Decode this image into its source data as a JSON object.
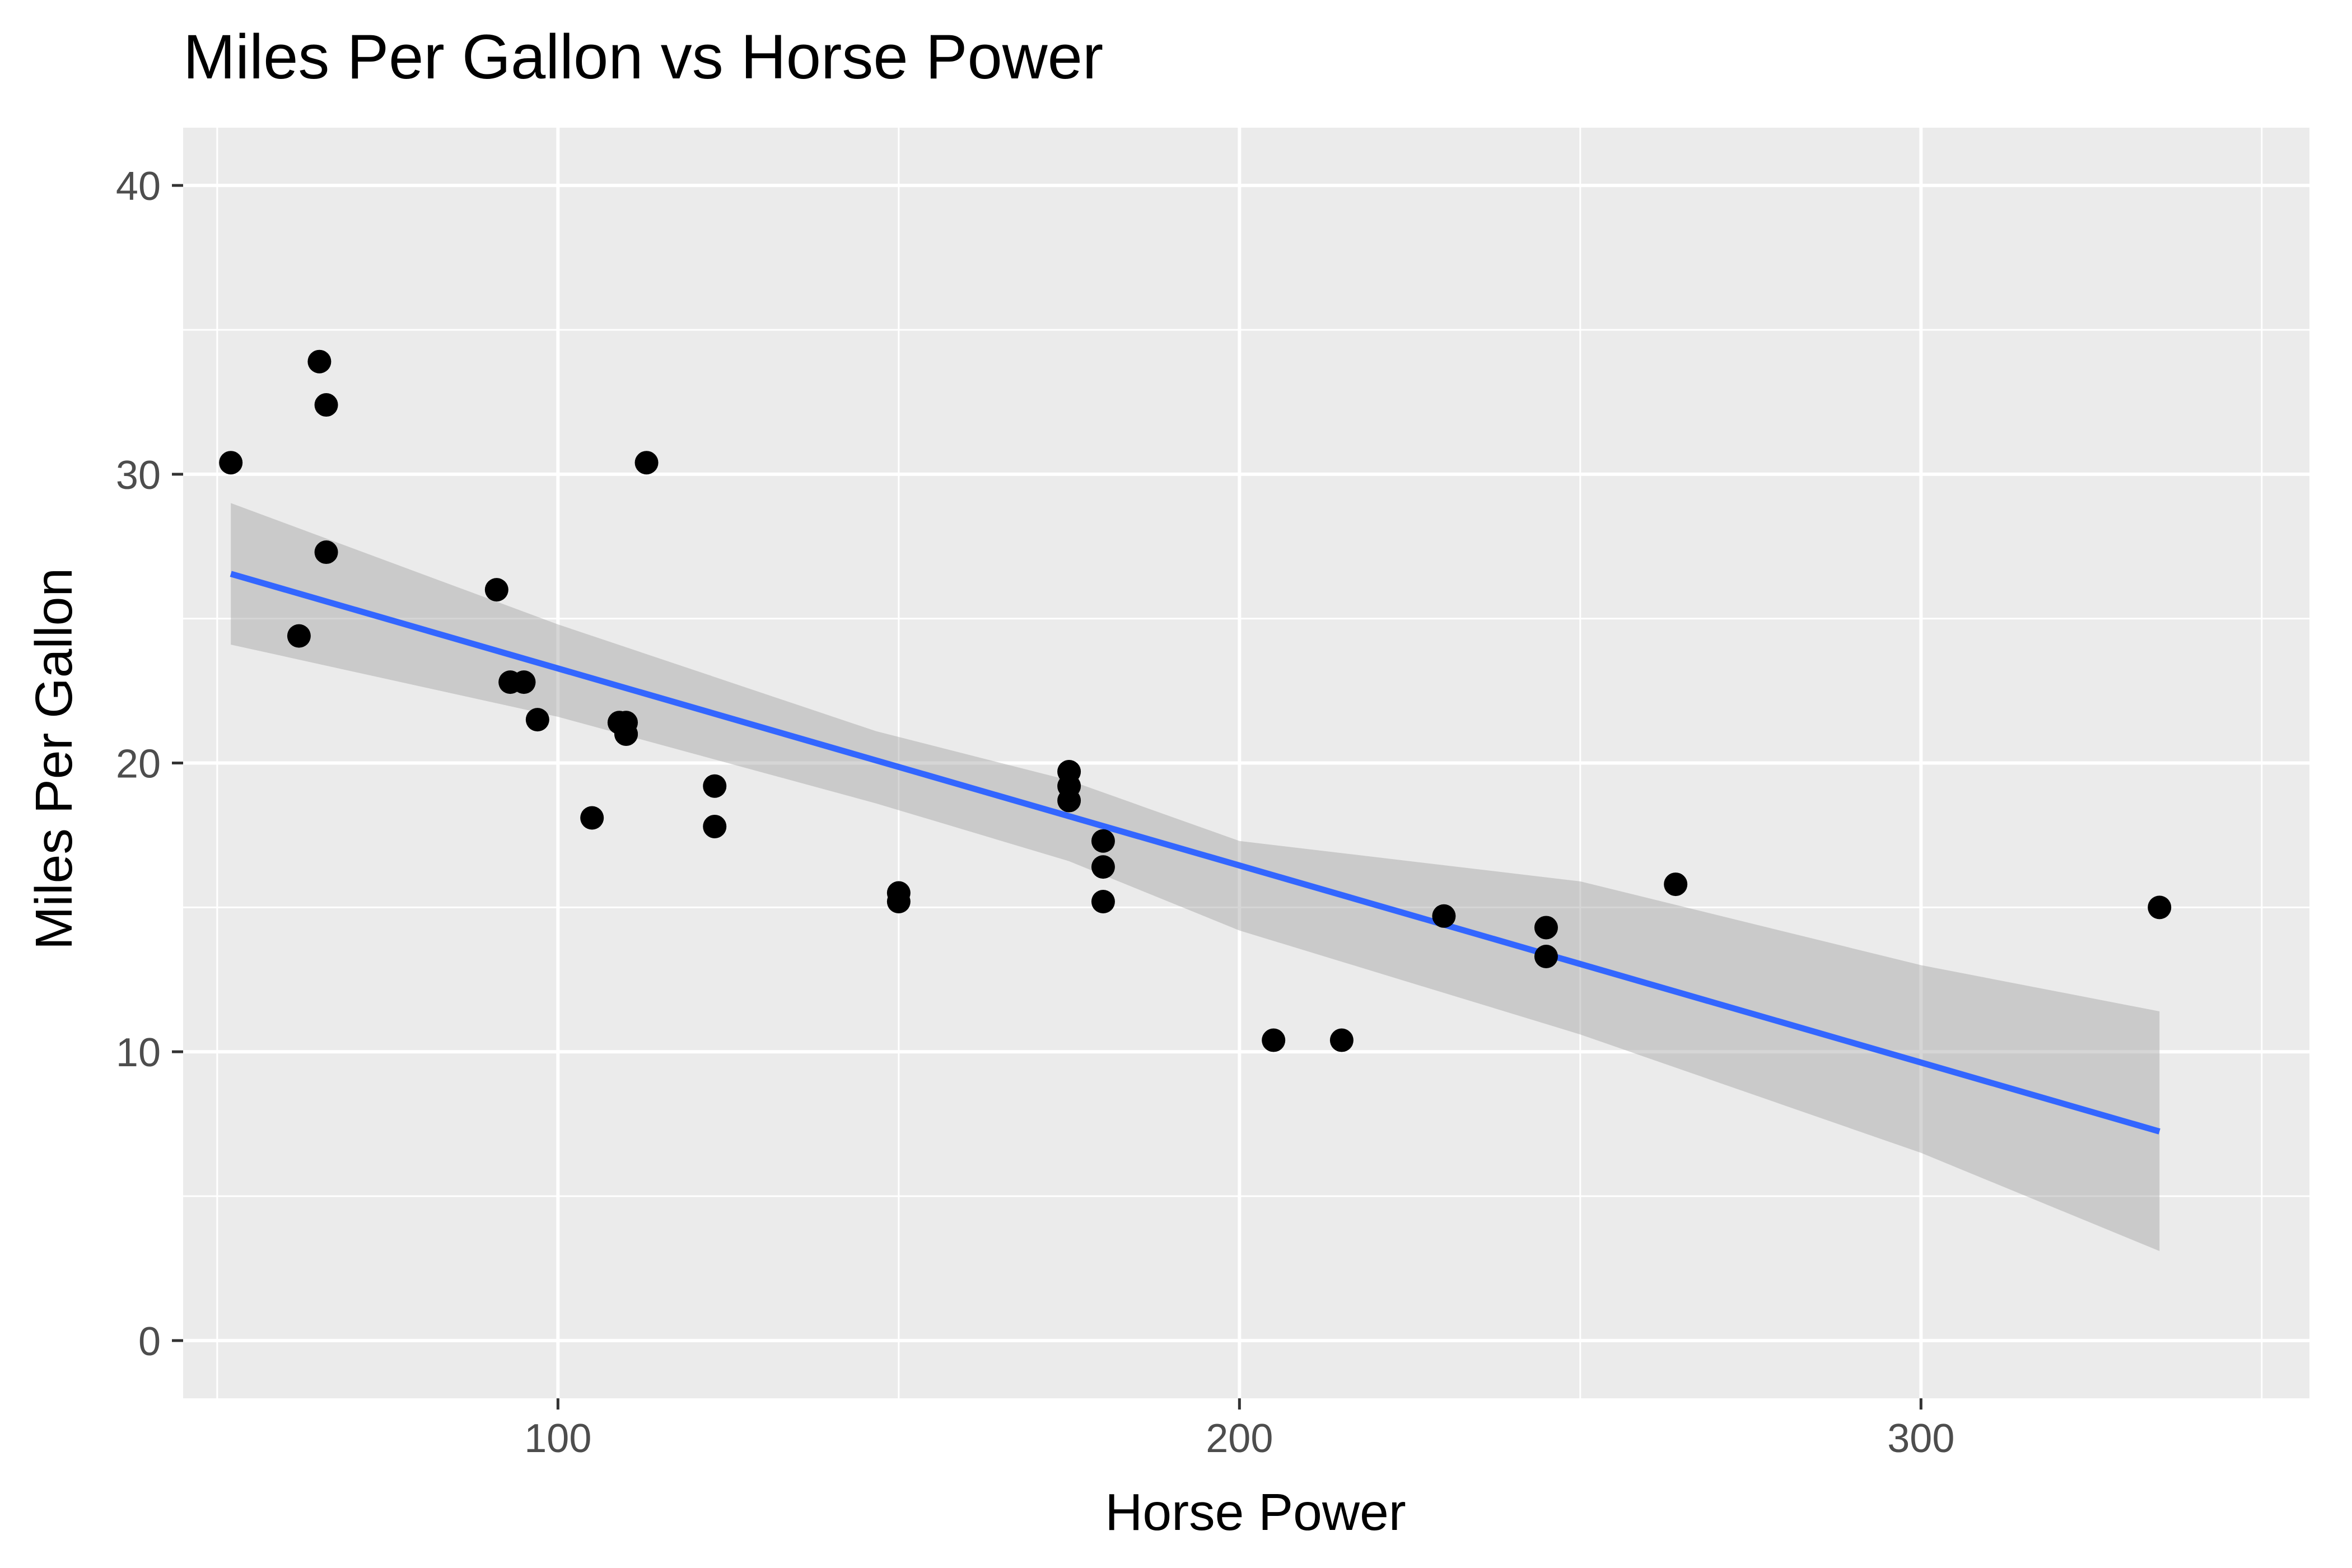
{
  "chart_data": {
    "type": "scatter",
    "title": "Miles Per Gallon vs Horse Power",
    "xlabel": "Horse Power",
    "ylabel": "Miles Per Gallon",
    "xlim": [
      45,
      357
    ],
    "ylim": [
      -2,
      42
    ],
    "x_ticks": [
      100,
      200,
      300
    ],
    "x_tick_labels": [
      "100",
      "200",
      "300"
    ],
    "y_ticks": [
      0,
      10,
      20,
      30,
      40
    ],
    "y_tick_labels": [
      "0",
      "10",
      "20",
      "30",
      "40"
    ],
    "x_minor_gridlines": [
      50,
      150,
      250,
      350
    ],
    "y_minor_gridlines": [
      5,
      15,
      25,
      35
    ],
    "grid": true,
    "colors": {
      "panel": "#ebebeb",
      "grid": "#ffffff",
      "points": "#000000",
      "fit_line": "#3366ff",
      "ribbon": "#999999",
      "axis_text": "#4d4d4d",
      "tick": "#333333"
    },
    "points": [
      {
        "x": 110,
        "y": 21.0
      },
      {
        "x": 110,
        "y": 21.0
      },
      {
        "x": 93,
        "y": 22.8
      },
      {
        "x": 110,
        "y": 21.4
      },
      {
        "x": 175,
        "y": 18.7
      },
      {
        "x": 105,
        "y": 18.1
      },
      {
        "x": 245,
        "y": 14.3
      },
      {
        "x": 62,
        "y": 24.4
      },
      {
        "x": 95,
        "y": 22.8
      },
      {
        "x": 123,
        "y": 19.2
      },
      {
        "x": 123,
        "y": 17.8
      },
      {
        "x": 180,
        "y": 16.4
      },
      {
        "x": 180,
        "y": 17.3
      },
      {
        "x": 180,
        "y": 15.2
      },
      {
        "x": 205,
        "y": 10.4
      },
      {
        "x": 215,
        "y": 10.4
      },
      {
        "x": 230,
        "y": 14.7
      },
      {
        "x": 66,
        "y": 32.4
      },
      {
        "x": 52,
        "y": 30.4
      },
      {
        "x": 65,
        "y": 33.9
      },
      {
        "x": 97,
        "y": 21.5
      },
      {
        "x": 150,
        "y": 15.5
      },
      {
        "x": 150,
        "y": 15.2
      },
      {
        "x": 245,
        "y": 13.3
      },
      {
        "x": 175,
        "y": 19.2
      },
      {
        "x": 66,
        "y": 27.3
      },
      {
        "x": 91,
        "y": 26.0
      },
      {
        "x": 113,
        "y": 30.4
      },
      {
        "x": 264,
        "y": 15.8
      },
      {
        "x": 175,
        "y": 19.7
      },
      {
        "x": 335,
        "y": 15.0
      },
      {
        "x": 109,
        "y": 21.4
      }
    ],
    "fit_line": {
      "x": [
        52,
        335
      ],
      "y": [
        26.55,
        7.24
      ]
    },
    "confidence_band": [
      {
        "x": 52,
        "lower": 24.1,
        "upper": 29.0
      },
      {
        "x": 100,
        "lower": 21.6,
        "upper": 24.8
      },
      {
        "x": 146.7,
        "lower": 18.6,
        "upper": 21.1
      },
      {
        "x": 175,
        "lower": 16.6,
        "upper": 19.4
      },
      {
        "x": 200,
        "lower": 14.2,
        "upper": 17.3
      },
      {
        "x": 250,
        "lower": 10.6,
        "upper": 15.9
      },
      {
        "x": 300,
        "lower": 6.5,
        "upper": 13.0
      },
      {
        "x": 335,
        "lower": 3.1,
        "upper": 11.4
      }
    ]
  }
}
